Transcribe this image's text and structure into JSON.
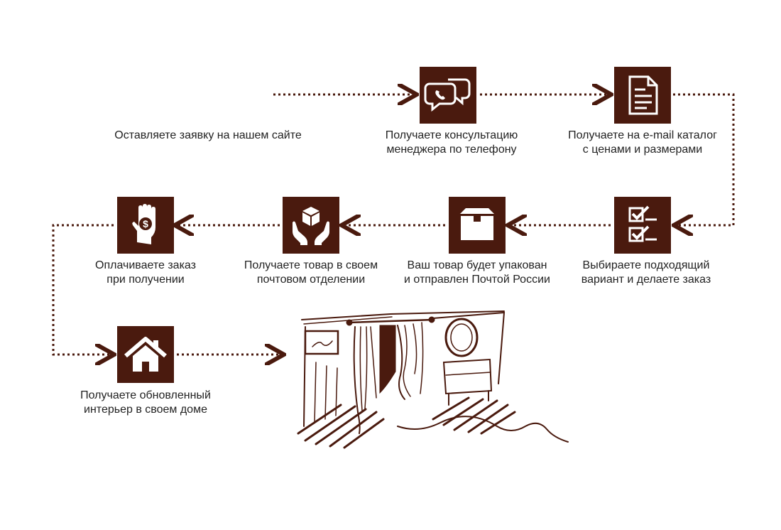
{
  "colors": {
    "accent": "#4a1a0e",
    "text": "#222222",
    "background": "#ffffff"
  },
  "steps": [
    {
      "icon": "none",
      "text": "Оставляете заявку на нашем сайте"
    },
    {
      "icon": "chat-bubbles-phone-icon",
      "line1": "Получаете консультацию",
      "line2": "менеджера по телефону"
    },
    {
      "icon": "document-icon",
      "line1": "Получаете на e-mail каталог",
      "line2": "с ценами и размерами"
    },
    {
      "icon": "checklist-icon",
      "line1": "Выбираете подходящий",
      "line2": "вариант и делаете заказ"
    },
    {
      "icon": "open-box-icon",
      "line1": "Ваш товар будет упакован",
      "line2": "и отправлен Почтой России"
    },
    {
      "icon": "hands-holding-box-icon",
      "line1": "Получаете товар в своем",
      "line2": "почтовом отделении"
    },
    {
      "icon": "hand-coin-icon",
      "line1": "Оплачиваете заказ",
      "line2": "при получении"
    },
    {
      "icon": "house-icon",
      "line1": "Получаете обновленный",
      "line2": "интерьер в своем доме"
    }
  ],
  "illustration": "room-interior-sketch"
}
